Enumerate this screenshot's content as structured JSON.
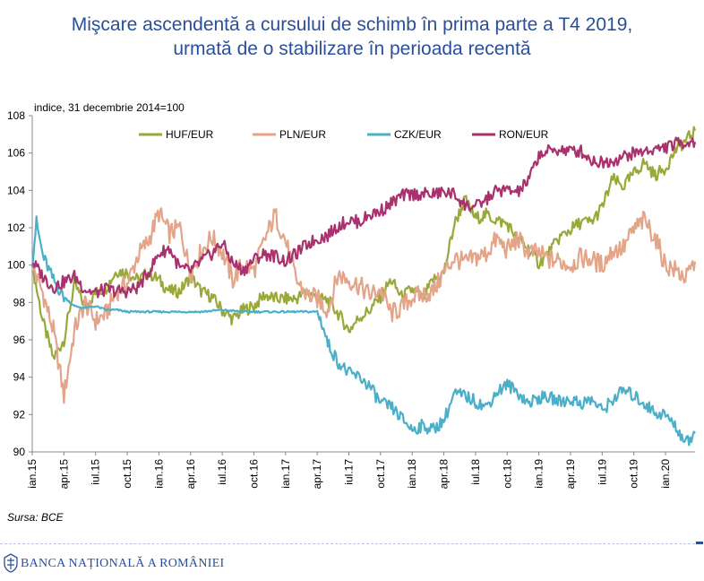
{
  "title_line1": "Mişcare ascendentă a cursului de schimb în prima parte a T4 2019,",
  "title_line2": "urmată de o stabilizare în perioada recentă",
  "source": "Sursa: BCE",
  "footer_bank": "BANCA NAȚIONALĂ A ROMÂNIEI",
  "chart_data": {
    "type": "line",
    "ylabel": "indice, 31 decembrie 2014=100",
    "xlabel": "",
    "ylim": [
      90,
      108
    ],
    "yticks": [
      90,
      92,
      94,
      96,
      98,
      100,
      102,
      104,
      106,
      108
    ],
    "xlim": [
      0,
      62.8
    ],
    "xtick_labels": [
      "ian.15",
      "apr.15",
      "iul.15",
      "oct.15",
      "ian.16",
      "apr.16",
      "iul.16",
      "oct.16",
      "ian.17",
      "apr.17",
      "iul.17",
      "oct.17",
      "ian.18",
      "apr.18",
      "iul.18",
      "oct.18",
      "ian.19",
      "apr.19",
      "iul.19",
      "oct.19",
      "ian.20"
    ],
    "legend_position": "top",
    "grid": false,
    "series": [
      {
        "name": "HUF/EUR",
        "color": "#9aa83a",
        "points": [
          [
            0,
            100
          ],
          [
            1,
            97
          ],
          [
            2,
            95
          ],
          [
            3,
            96
          ],
          [
            4,
            99
          ],
          [
            5,
            97.8
          ],
          [
            6,
            98.5
          ],
          [
            7,
            98.8
          ],
          [
            8,
            99.7
          ],
          [
            9,
            99.6
          ],
          [
            10,
            99.2
          ],
          [
            11,
            99.6
          ],
          [
            12,
            99.2
          ],
          [
            13,
            98.6
          ],
          [
            14,
            98.6
          ],
          [
            15,
            99.4
          ],
          [
            16,
            98.6
          ],
          [
            17,
            98.3
          ],
          [
            18,
            97.6
          ],
          [
            19,
            97.1
          ],
          [
            20,
            97.6
          ],
          [
            21,
            97.8
          ],
          [
            22,
            98.4
          ],
          [
            23,
            98.2
          ],
          [
            24,
            98.2
          ],
          [
            25,
            98.2
          ],
          [
            26,
            98.6
          ],
          [
            27,
            98.2
          ],
          [
            28,
            98.1
          ],
          [
            29,
            97.4
          ],
          [
            30,
            96.5
          ],
          [
            31,
            97.2
          ],
          [
            32,
            97.6
          ],
          [
            33,
            98.3
          ],
          [
            34,
            99.2
          ],
          [
            35,
            98.3
          ],
          [
            36,
            98.7
          ],
          [
            37,
            98.2
          ],
          [
            38,
            99.2
          ],
          [
            39,
            99.6
          ],
          [
            40,
            102.2
          ],
          [
            41,
            103.5
          ],
          [
            42,
            102.5
          ],
          [
            43,
            102.7
          ],
          [
            44,
            102.4
          ],
          [
            45,
            102.2
          ],
          [
            46,
            101.4
          ],
          [
            47,
            100.9
          ],
          [
            48,
            100.1
          ],
          [
            49,
            100.7
          ],
          [
            50,
            101.5
          ],
          [
            51,
            101.9
          ],
          [
            52,
            102.3
          ],
          [
            53,
            102.3
          ],
          [
            54,
            103.1
          ],
          [
            55,
            104.6
          ],
          [
            56,
            104.2
          ],
          [
            57,
            104.9
          ],
          [
            58,
            105.5
          ],
          [
            59,
            104.8
          ],
          [
            60,
            105.2
          ],
          [
            61,
            106.2
          ],
          [
            62,
            106.7
          ],
          [
            62.8,
            107.2
          ]
        ]
      },
      {
        "name": "PLN/EUR",
        "color": "#e3a58a",
        "points": [
          [
            0,
            100
          ],
          [
            1,
            98.5
          ],
          [
            2,
            96.5
          ],
          [
            3,
            93
          ],
          [
            4,
            96.5
          ],
          [
            5,
            98
          ],
          [
            6,
            97
          ],
          [
            7,
            97.4
          ],
          [
            8,
            98.6
          ],
          [
            9,
            99
          ],
          [
            10,
            100.5
          ],
          [
            11,
            101.3
          ],
          [
            12,
            102.8
          ],
          [
            13,
            101.7
          ],
          [
            14,
            102
          ],
          [
            15,
            99.6
          ],
          [
            16,
            100.7
          ],
          [
            17,
            101.5
          ],
          [
            18,
            100.7
          ],
          [
            19,
            99.2
          ],
          [
            20,
            100.1
          ],
          [
            21,
            99.7
          ],
          [
            22,
            101.3
          ],
          [
            23,
            102.7
          ],
          [
            24,
            101.3
          ],
          [
            25,
            99.2
          ],
          [
            26,
            98.4
          ],
          [
            27,
            98.2
          ],
          [
            28,
            97.6
          ],
          [
            29,
            99.5
          ],
          [
            30,
            99.2
          ],
          [
            31,
            98.9
          ],
          [
            32,
            98.4
          ],
          [
            33,
            98.7
          ],
          [
            34,
            97.4
          ],
          [
            35,
            97.7
          ],
          [
            36,
            98.3
          ],
          [
            37,
            98.4
          ],
          [
            38,
            98.6
          ],
          [
            39,
            99.6
          ],
          [
            40,
            100.4
          ],
          [
            41,
            100.1
          ],
          [
            42,
            100.4
          ],
          [
            43,
            100.6
          ],
          [
            44,
            101.4
          ],
          [
            45,
            100.8
          ],
          [
            46,
            101.4
          ],
          [
            47,
            100.7
          ],
          [
            48,
            100.6
          ],
          [
            49,
            100.3
          ],
          [
            50,
            100.2
          ],
          [
            51,
            100
          ],
          [
            52,
            100.4
          ],
          [
            53,
            100.3
          ],
          [
            54,
            100
          ],
          [
            55,
            100.8
          ],
          [
            56,
            100.9
          ],
          [
            57,
            101.9
          ],
          [
            58,
            102.4
          ],
          [
            59,
            101.5
          ],
          [
            60,
            100
          ],
          [
            61,
            99.7
          ],
          [
            62,
            99.3
          ],
          [
            62.8,
            100.2
          ]
        ]
      },
      {
        "name": "CZK/EUR",
        "color": "#4bafc9",
        "points": [
          [
            0,
            100.2
          ],
          [
            0.4,
            102.3
          ],
          [
            1,
            100.5
          ],
          [
            2,
            99.2
          ],
          [
            3,
            98.3
          ],
          [
            4,
            97.8
          ],
          [
            5,
            97.7
          ],
          [
            6,
            97.8
          ],
          [
            7,
            97.6
          ],
          [
            8,
            97.6
          ],
          [
            9,
            97.5
          ],
          [
            10,
            97.5
          ],
          [
            12,
            97.5
          ],
          [
            14,
            97.5
          ],
          [
            16,
            97.5
          ],
          [
            18,
            97.6
          ],
          [
            20,
            97.5
          ],
          [
            22,
            97.5
          ],
          [
            24,
            97.5
          ],
          [
            26,
            97.5
          ],
          [
            27,
            97.5
          ],
          [
            27.5,
            96.8
          ],
          [
            28,
            95.8
          ],
          [
            29,
            94.8
          ],
          [
            30,
            94.2
          ],
          [
            31,
            94
          ],
          [
            32,
            93.5
          ],
          [
            33,
            92.6
          ],
          [
            34,
            92.4
          ],
          [
            35,
            91.8
          ],
          [
            36,
            91.2
          ],
          [
            37,
            91.4
          ],
          [
            38,
            91.2
          ],
          [
            39,
            91.7
          ],
          [
            40,
            93.1
          ],
          [
            41,
            93
          ],
          [
            42,
            92.7
          ],
          [
            43,
            92.4
          ],
          [
            44,
            93.2
          ],
          [
            45,
            93.6
          ],
          [
            46,
            93.2
          ],
          [
            47,
            92.6
          ],
          [
            48,
            92.9
          ],
          [
            49,
            92.9
          ],
          [
            50,
            92.7
          ],
          [
            51,
            92.8
          ],
          [
            52,
            92.6
          ],
          [
            53,
            92.8
          ],
          [
            54,
            92.2
          ],
          [
            55,
            92.8
          ],
          [
            56,
            93.3
          ],
          [
            57,
            93
          ],
          [
            58,
            92.6
          ],
          [
            59,
            92.1
          ],
          [
            60,
            92
          ],
          [
            61,
            91.3
          ],
          [
            62,
            90.5
          ],
          [
            62.8,
            91
          ]
        ]
      },
      {
        "name": "RON/EUR",
        "color": "#a8326e",
        "points": [
          [
            0,
            100.2
          ],
          [
            1,
            99.4
          ],
          [
            2,
            98.8
          ],
          [
            3,
            99.1
          ],
          [
            4,
            99.4
          ],
          [
            5,
            98.7
          ],
          [
            6,
            98.5
          ],
          [
            7,
            98.7
          ],
          [
            8,
            98.6
          ],
          [
            9,
            98.6
          ],
          [
            10,
            98.8
          ],
          [
            11,
            99.6
          ],
          [
            12,
            100.6
          ],
          [
            13,
            100.9
          ],
          [
            14,
            99.8
          ],
          [
            15,
            99.7
          ],
          [
            16,
            100.2
          ],
          [
            17,
            100.6
          ],
          [
            18,
            101.2
          ],
          [
            19,
            100.1
          ],
          [
            20,
            99.7
          ],
          [
            21,
            100.3
          ],
          [
            22,
            100.6
          ],
          [
            23,
            100.5
          ],
          [
            24,
            100.2
          ],
          [
            25,
            100.6
          ],
          [
            26,
            101.1
          ],
          [
            27,
            101.4
          ],
          [
            28,
            101.6
          ],
          [
            29,
            102.1
          ],
          [
            30,
            102.4
          ],
          [
            31,
            102.3
          ],
          [
            32,
            102.7
          ],
          [
            33,
            102.9
          ],
          [
            34,
            103.3
          ],
          [
            35,
            103.7
          ],
          [
            36,
            103.8
          ],
          [
            37,
            103.8
          ],
          [
            38,
            103.8
          ],
          [
            39,
            103.9
          ],
          [
            40,
            103.8
          ],
          [
            41,
            103.2
          ],
          [
            42,
            103.1
          ],
          [
            43,
            103.5
          ],
          [
            44,
            104
          ],
          [
            45,
            104
          ],
          [
            46,
            103.9
          ],
          [
            47,
            104.5
          ],
          [
            48,
            105.9
          ],
          [
            49,
            106.1
          ],
          [
            50,
            106.2
          ],
          [
            51,
            106.1
          ],
          [
            52,
            106.1
          ],
          [
            53,
            105.6
          ],
          [
            54,
            105.5
          ],
          [
            55,
            105.6
          ],
          [
            56,
            105.8
          ],
          [
            57,
            106
          ],
          [
            58,
            106.1
          ],
          [
            59,
            106.2
          ],
          [
            60,
            106.3
          ],
          [
            61,
            106.5
          ],
          [
            62,
            106.6
          ],
          [
            62.8,
            106.6
          ]
        ]
      }
    ]
  }
}
